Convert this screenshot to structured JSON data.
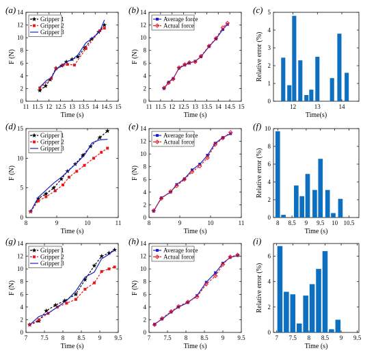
{
  "figure": {
    "colors": {
      "gripper1": "#000000",
      "gripper2": "#e8151b",
      "gripper3": "#1a21c9",
      "average": "#1a21c9",
      "actual": "#e8151b",
      "bar": "#0c6fc0"
    }
  },
  "chart_data": [
    {
      "id": "a",
      "label": "(a)",
      "type": "line",
      "xlabel": "Time (s)",
      "ylabel": "F (N)",
      "xlim": [
        11,
        15
      ],
      "ylim": [
        0,
        14
      ],
      "xticks": [
        "11",
        "11.5",
        "12",
        "12.5",
        "13",
        "13.5",
        "14",
        "14.5",
        "15"
      ],
      "yticks": [
        "0",
        "2",
        "4",
        "6",
        "8",
        "10",
        "12",
        "14"
      ],
      "legend_position": "top-left",
      "series": [
        {
          "name": "Gripper 1",
          "color": "#000000",
          "dash": "dashed",
          "marker": "star",
          "x": [
            11.6,
            11.85,
            12.05,
            12.3,
            12.55,
            12.75,
            13.0,
            13.25,
            13.55,
            13.85,
            14.15,
            14.4
          ],
          "y": [
            1.7,
            2.4,
            3.4,
            5.2,
            5.6,
            6.2,
            6.6,
            7.0,
            8.4,
            9.8,
            10.9,
            12.0
          ]
        },
        {
          "name": "Gripper 2",
          "color": "#e8151b",
          "dash": "dashed",
          "marker": "square",
          "x": [
            11.6,
            12.1,
            12.3,
            12.6,
            12.8,
            13.1,
            13.6,
            14.2,
            14.4
          ],
          "y": [
            2.1,
            3.6,
            5.1,
            5.7,
            5.8,
            5.7,
            8.3,
            11.1,
            11.5
          ]
        },
        {
          "name": "Gripper 3",
          "color": "#1a21c9",
          "dash": "solid",
          "marker": "none",
          "x": [
            11.6,
            11.9,
            12.1,
            12.3,
            12.55,
            12.8,
            13.0,
            13.25,
            13.6,
            13.9,
            14.2,
            14.4
          ],
          "y": [
            2.2,
            3.3,
            3.7,
            5.0,
            5.6,
            6.3,
            6.5,
            7.3,
            9.2,
            10.0,
            11.0,
            12.8
          ]
        }
      ]
    },
    {
      "id": "b",
      "label": "(b)",
      "type": "line",
      "xlabel": "Time (s)",
      "ylabel": "F (N)",
      "xlim": [
        11,
        15
      ],
      "ylim": [
        0,
        14
      ],
      "xticks": [
        "11",
        "11.5",
        "12",
        "12.5",
        "13",
        "13.5",
        "14",
        "14.5",
        "15"
      ],
      "yticks": [
        "0",
        "2",
        "4",
        "6",
        "8",
        "10",
        "12",
        "14"
      ],
      "legend_position": "top-left",
      "series": [
        {
          "name": "Average force",
          "color": "#1a21c9",
          "dash": "solid",
          "marker": "square",
          "x": [
            11.65,
            11.85,
            12.05,
            12.3,
            12.55,
            12.75,
            13.0,
            13.25,
            13.6,
            13.9,
            14.2,
            14.4
          ],
          "y": [
            2.0,
            3.0,
            3.6,
            5.2,
            5.7,
            6.0,
            6.3,
            7.0,
            8.6,
            9.8,
            11.3,
            12.1
          ]
        },
        {
          "name": "Actual force",
          "color": "#e8151b",
          "dash": "dashed",
          "marker": "diamond",
          "x": [
            11.65,
            11.85,
            12.05,
            12.3,
            12.55,
            12.75,
            13.0,
            13.25,
            13.6,
            13.9,
            14.2,
            14.4
          ],
          "y": [
            2.1,
            2.9,
            3.5,
            5.3,
            5.8,
            6.1,
            6.2,
            7.1,
            8.7,
            9.9,
            11.6,
            12.3
          ]
        }
      ]
    },
    {
      "id": "c",
      "label": "(c)",
      "type": "bar",
      "xlabel": "Time(s)",
      "ylabel": "Relative error (%)",
      "xlim": [
        11.2,
        14.7
      ],
      "ylim": [
        0,
        5
      ],
      "xticks": [
        "12",
        "13",
        "14"
      ],
      "yticks": [
        "0",
        "1",
        "2",
        "3",
        "4",
        "5"
      ],
      "bar_width": 0.17,
      "x": [
        11.6,
        11.85,
        12.05,
        12.3,
        12.55,
        12.75,
        13.0,
        13.25,
        13.6,
        13.9,
        14.2
      ],
      "values": [
        2.45,
        0.9,
        4.8,
        2.3,
        0.35,
        0.65,
        2.5,
        0.0,
        1.3,
        3.8,
        1.6
      ]
    },
    {
      "id": "d",
      "label": "(d)",
      "type": "line",
      "xlabel": "Time (s)",
      "ylabel": "F (N)",
      "xlim": [
        8,
        11
      ],
      "ylim": [
        0,
        15
      ],
      "xticks": [
        "8",
        "9",
        "10",
        "11"
      ],
      "yticks": [
        "0",
        "5",
        "10",
        "15"
      ],
      "legend_position": "top-left",
      "series": [
        {
          "name": "Gripper 1",
          "color": "#000000",
          "dash": "dashed",
          "marker": "star",
          "x": [
            8.15,
            8.4,
            8.65,
            8.9,
            9.15,
            9.35,
            9.6,
            9.85,
            10.1,
            10.4,
            10.65
          ],
          "y": [
            1.0,
            3.2,
            4.0,
            5.0,
            6.5,
            7.8,
            9.0,
            10.5,
            12.0,
            13.5,
            14.6
          ]
        },
        {
          "name": "Gripper 2",
          "color": "#e8151b",
          "dash": "dashed",
          "marker": "square",
          "x": [
            8.15,
            8.4,
            8.65,
            8.95,
            9.2,
            9.4,
            9.65,
            9.9,
            10.2,
            10.45,
            10.65
          ],
          "y": [
            1.0,
            2.8,
            3.5,
            4.5,
            5.5,
            6.8,
            7.8,
            8.8,
            10.0,
            11.0,
            11.7
          ]
        },
        {
          "name": "Gripper 3",
          "color": "#1a21c9",
          "dash": "solid",
          "marker": "none",
          "x": [
            8.15,
            8.4,
            8.9,
            9.15,
            9.4,
            9.65,
            9.9,
            10.15,
            10.4,
            10.65
          ],
          "y": [
            1.0,
            3.4,
            5.8,
            6.8,
            8.0,
            9.2,
            10.5,
            12.6,
            13.1,
            13.2
          ]
        }
      ]
    },
    {
      "id": "e",
      "label": "(e)",
      "type": "line",
      "xlabel": "Time (s)",
      "ylabel": "F (N)",
      "xlim": [
        8,
        11
      ],
      "ylim": [
        0,
        14
      ],
      "xticks": [
        "8",
        "9",
        "10",
        "11"
      ],
      "yticks": [
        "0",
        "2",
        "4",
        "6",
        "8",
        "10",
        "12",
        "14"
      ],
      "legend_position": "top-left",
      "series": [
        {
          "name": "Average force",
          "color": "#1a21c9",
          "dash": "solid",
          "marker": "square",
          "x": [
            8.15,
            8.4,
            8.7,
            8.9,
            9.15,
            9.4,
            9.65,
            9.9,
            10.15,
            10.4,
            10.65
          ],
          "y": [
            1.0,
            3.1,
            4.0,
            5.2,
            6.1,
            7.5,
            8.4,
            9.8,
            11.7,
            12.6,
            13.2
          ]
        },
        {
          "name": "Actual force",
          "color": "#e8151b",
          "dash": "dashed",
          "marker": "diamond",
          "x": [
            8.15,
            8.4,
            8.7,
            8.9,
            9.15,
            9.4,
            9.65,
            9.9,
            10.15,
            10.4,
            10.65
          ],
          "y": [
            1.1,
            3.0,
            4.1,
            5.0,
            6.0,
            7.2,
            8.1,
            9.4,
            11.5,
            12.5,
            13.4
          ]
        }
      ]
    },
    {
      "id": "f",
      "label": "(f)",
      "type": "bar",
      "xlabel": "Time (s)",
      "ylabel": "Relative error (%)",
      "xlim": [
        7.85,
        10.85
      ],
      "ylim": [
        0,
        10
      ],
      "xticks": [
        "8",
        "8.5",
        "9",
        "9.5",
        "10",
        "10.5"
      ],
      "yticks": [
        "0",
        "2",
        "4",
        "6",
        "8",
        "10"
      ],
      "bar_width": 0.16,
      "x": [
        8.0,
        8.2,
        8.4,
        8.65,
        8.85,
        9.05,
        9.3,
        9.5,
        9.75,
        9.95,
        10.2,
        10.4,
        10.6
      ],
      "values": [
        9.7,
        0.3,
        0.0,
        3.6,
        2.4,
        4.9,
        3.1,
        6.6,
        3.1,
        0.5,
        2.1,
        0.0,
        0.0
      ]
    },
    {
      "id": "g",
      "label": "(g)",
      "type": "line",
      "xlabel": "Time (s)",
      "ylabel": "F (N)",
      "xlim": [
        7,
        9.5
      ],
      "ylim": [
        0,
        14
      ],
      "xticks": [
        "7",
        "7.5",
        "8",
        "8.5",
        "9",
        "9.5"
      ],
      "yticks": [
        "0",
        "2",
        "4",
        "6",
        "8",
        "10",
        "12",
        "14"
      ],
      "legend_position": "top-left",
      "series": [
        {
          "name": "Gripper 1",
          "color": "#000000",
          "dash": "dashed",
          "marker": "star",
          "x": [
            7.1,
            7.35,
            7.55,
            7.8,
            8.05,
            8.35,
            8.6,
            8.85,
            9.05,
            9.25,
            9.4
          ],
          "y": [
            1.2,
            1.8,
            3.4,
            4.3,
            5.0,
            6.0,
            8.3,
            10.5,
            12.0,
            12.5,
            13.0
          ]
        },
        {
          "name": "Gripper 2",
          "color": "#e8151b",
          "dash": "dashed",
          "marker": "square",
          "x": [
            7.1,
            7.35,
            7.6,
            7.85,
            8.1,
            8.35,
            8.6,
            8.85,
            9.05,
            9.25,
            9.4
          ],
          "y": [
            1.2,
            2.0,
            3.0,
            4.0,
            4.6,
            5.2,
            6.8,
            7.8,
            9.6,
            10.0,
            10.3
          ]
        },
        {
          "name": "Gripper 3",
          "color": "#1a21c9",
          "dash": "solid",
          "marker": "none",
          "x": [
            7.1,
            7.35,
            7.6,
            7.85,
            8.1,
            8.35,
            8.6,
            8.85,
            9.05,
            9.25,
            9.4
          ],
          "y": [
            1.2,
            2.5,
            3.0,
            4.0,
            5.0,
            6.5,
            8.7,
            9.5,
            11.6,
            12.3,
            13.0
          ]
        }
      ]
    },
    {
      "id": "h",
      "label": "(h)",
      "type": "line",
      "xlabel": "Time (s)",
      "ylabel": "F (N)",
      "xlim": [
        7,
        9.5
      ],
      "ylim": [
        0,
        14
      ],
      "xticks": [
        "7",
        "7.5",
        "8",
        "8.5",
        "9",
        "9.5"
      ],
      "yticks": [
        "0",
        "2",
        "4",
        "6",
        "8",
        "10",
        "12",
        "14"
      ],
      "legend_position": "top-left",
      "series": [
        {
          "name": "Average force",
          "color": "#1a21c9",
          "dash": "solid",
          "marker": "square",
          "x": [
            7.15,
            7.35,
            7.6,
            7.8,
            8.05,
            8.3,
            8.55,
            8.8,
            9.0,
            9.2,
            9.4
          ],
          "y": [
            1.3,
            2.1,
            3.2,
            4.0,
            4.7,
            5.8,
            7.9,
            9.4,
            10.9,
            11.8,
            12.1
          ]
        },
        {
          "name": "Actual force",
          "color": "#e8151b",
          "dash": "dashed",
          "marker": "diamond",
          "x": [
            7.15,
            7.35,
            7.6,
            7.8,
            8.05,
            8.3,
            8.55,
            8.8,
            9.0,
            9.2,
            9.4
          ],
          "y": [
            1.2,
            2.2,
            3.3,
            4.1,
            4.8,
            5.6,
            7.6,
            8.9,
            10.7,
            11.9,
            12.2
          ]
        }
      ]
    },
    {
      "id": "i",
      "label": "(i)",
      "type": "bar",
      "xlabel": "Time (s)",
      "ylabel": "Relative error (%)",
      "xlim": [
        6.9,
        9.55
      ],
      "ylim": [
        0,
        7
      ],
      "xticks": [
        "7",
        "7.5",
        "8",
        "8.5",
        "9",
        "9.5"
      ],
      "yticks": [
        "0",
        "2",
        "4",
        "6"
      ],
      "bar_width": 0.16,
      "x": [
        7.1,
        7.3,
        7.5,
        7.7,
        7.9,
        8.1,
        8.3,
        8.5,
        8.7,
        8.9,
        9.1,
        9.3
      ],
      "values": [
        6.8,
        3.2,
        3.0,
        0.7,
        2.9,
        3.8,
        5.0,
        6.4,
        0.25,
        1.0,
        0.0,
        0.0
      ]
    }
  ]
}
